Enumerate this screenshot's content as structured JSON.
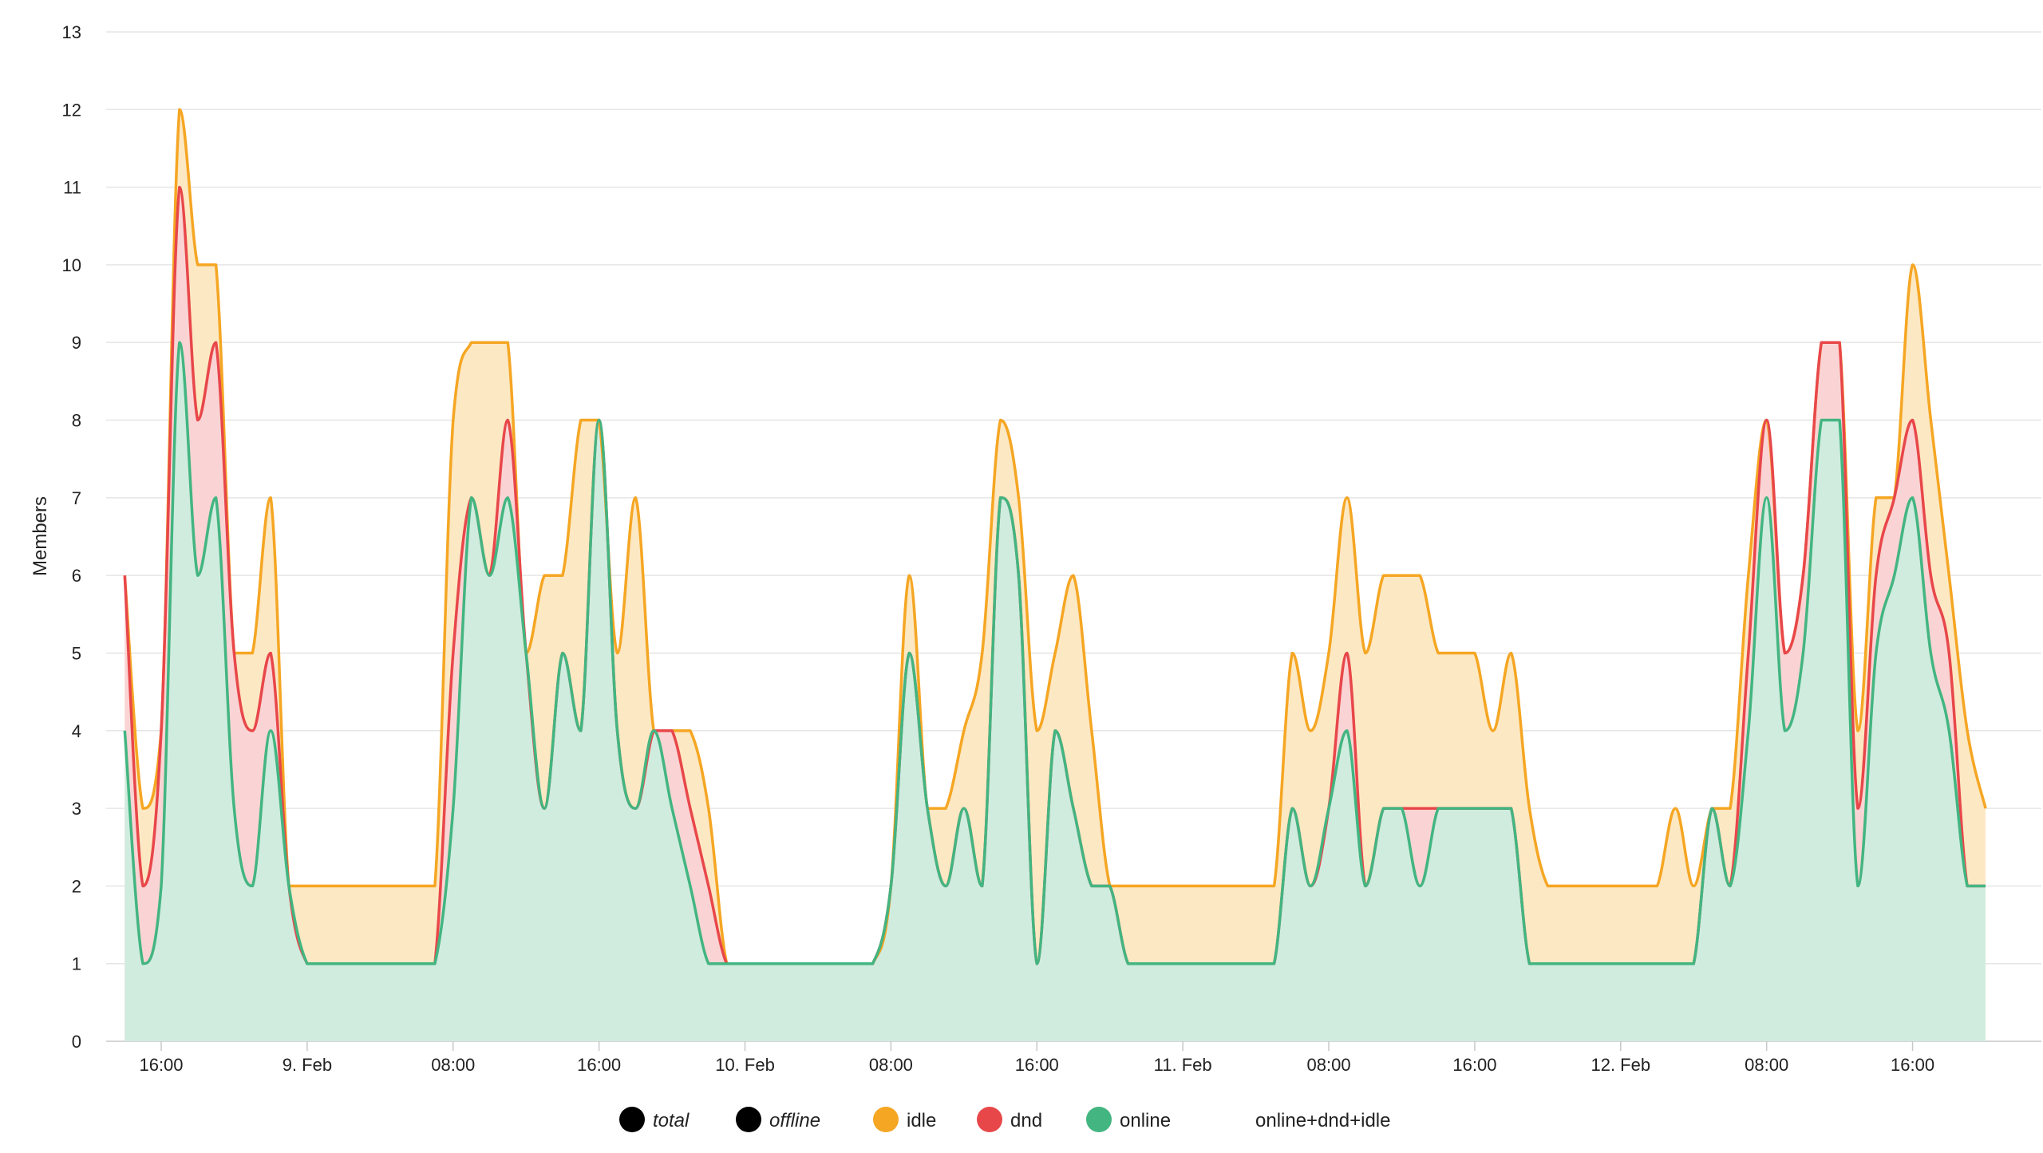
{
  "chart_data": {
    "type": "area",
    "title": "",
    "ylabel": "Members",
    "xlabel": "",
    "ylim": [
      0,
      13
    ],
    "y_ticks": [
      0,
      1,
      2,
      3,
      4,
      5,
      6,
      7,
      8,
      9,
      10,
      11,
      12,
      13
    ],
    "x_range_hours": [
      -4,
      128
    ],
    "x_ticks": [
      {
        "label": "16:00",
        "hour": 0
      },
      {
        "label": "9. Feb",
        "hour": 8
      },
      {
        "label": "08:00",
        "hour": 16
      },
      {
        "label": "16:00",
        "hour": 24
      },
      {
        "label": "10. Feb",
        "hour": 32
      },
      {
        "label": "08:00",
        "hour": 40
      },
      {
        "label": "16:00",
        "hour": 48
      },
      {
        "label": "11. Feb",
        "hour": 56
      },
      {
        "label": "08:00",
        "hour": 64
      },
      {
        "label": "16:00",
        "hour": 72
      },
      {
        "label": "12. Feb",
        "hour": 80
      },
      {
        "label": "08:00",
        "hour": 88
      },
      {
        "label": "16:00",
        "hour": 96
      }
    ],
    "grid": true,
    "legend_position": "bottom",
    "legend": [
      {
        "label": "total",
        "color": "#000000",
        "italic": true,
        "marker": true
      },
      {
        "label": "offline",
        "color": "#000000",
        "italic": true,
        "marker": true
      },
      {
        "label": "idle",
        "color": "#f5a623",
        "italic": false,
        "marker": true
      },
      {
        "label": "dnd",
        "color": "#e8474a",
        "italic": false,
        "marker": true
      },
      {
        "label": "online",
        "color": "#43b581",
        "italic": false,
        "marker": true
      },
      {
        "label": "online+dnd+idle",
        "color": "#000000",
        "italic": false,
        "marker": false
      }
    ],
    "series": [
      {
        "name": "online+dnd+idle",
        "color": "#f5a623",
        "fill": "#fde8c4",
        "points": [
          [
            -2,
            6
          ],
          [
            -1,
            3
          ],
          [
            0,
            4
          ],
          [
            1,
            12
          ],
          [
            2,
            10
          ],
          [
            3,
            10
          ],
          [
            4,
            5
          ],
          [
            5,
            5
          ],
          [
            6,
            7
          ],
          [
            7,
            2
          ],
          [
            8,
            2
          ],
          [
            9,
            2
          ],
          [
            10,
            2
          ],
          [
            11,
            2
          ],
          [
            12,
            2
          ],
          [
            13,
            2
          ],
          [
            14,
            2
          ],
          [
            15,
            2
          ],
          [
            16,
            8
          ],
          [
            17,
            9
          ],
          [
            18,
            9
          ],
          [
            19,
            9
          ],
          [
            20,
            5
          ],
          [
            21,
            6
          ],
          [
            22,
            6
          ],
          [
            23,
            8
          ],
          [
            24,
            8
          ],
          [
            25,
            5
          ],
          [
            26,
            7
          ],
          [
            27,
            4
          ],
          [
            28,
            4
          ],
          [
            29,
            4
          ],
          [
            30,
            3
          ],
          [
            31,
            1
          ],
          [
            32,
            1
          ],
          [
            33,
            1
          ],
          [
            34,
            1
          ],
          [
            35,
            1
          ],
          [
            36,
            1
          ],
          [
            37,
            1
          ],
          [
            38,
            1
          ],
          [
            39,
            1
          ],
          [
            40,
            2
          ],
          [
            41,
            6
          ],
          [
            42,
            3
          ],
          [
            43,
            3
          ],
          [
            44,
            4
          ],
          [
            45,
            5
          ],
          [
            46,
            8
          ],
          [
            47,
            7
          ],
          [
            48,
            4
          ],
          [
            49,
            5
          ],
          [
            50,
            6
          ],
          [
            51,
            4
          ],
          [
            52,
            2
          ],
          [
            53,
            2
          ],
          [
            54,
            2
          ],
          [
            55,
            2
          ],
          [
            56,
            2
          ],
          [
            57,
            2
          ],
          [
            58,
            2
          ],
          [
            59,
            2
          ],
          [
            60,
            2
          ],
          [
            61,
            2
          ],
          [
            62,
            5
          ],
          [
            63,
            4
          ],
          [
            64,
            5
          ],
          [
            65,
            7
          ],
          [
            66,
            5
          ],
          [
            67,
            6
          ],
          [
            68,
            6
          ],
          [
            69,
            6
          ],
          [
            70,
            5
          ],
          [
            71,
            5
          ],
          [
            72,
            5
          ],
          [
            73,
            4
          ],
          [
            74,
            5
          ],
          [
            75,
            3
          ],
          [
            76,
            2
          ],
          [
            77,
            2
          ],
          [
            78,
            2
          ],
          [
            79,
            2
          ],
          [
            80,
            2
          ],
          [
            81,
            2
          ],
          [
            82,
            2
          ],
          [
            83,
            3
          ],
          [
            84,
            2
          ],
          [
            85,
            3
          ],
          [
            86,
            3
          ],
          [
            87,
            6
          ],
          [
            88,
            8
          ],
          [
            89,
            5
          ],
          [
            90,
            6
          ],
          [
            91,
            9
          ],
          [
            92,
            9
          ],
          [
            93,
            4
          ],
          [
            94,
            7
          ],
          [
            95,
            7
          ],
          [
            96,
            10
          ],
          [
            97,
            8
          ],
          [
            98,
            6
          ],
          [
            99,
            4
          ],
          [
            100,
            3
          ]
        ]
      },
      {
        "name": "online+dnd",
        "color": "#e8474a",
        "fill": "#fad4d4",
        "points": [
          [
            -2,
            6
          ],
          [
            -1,
            2
          ],
          [
            0,
            4
          ],
          [
            1,
            11
          ],
          [
            2,
            8
          ],
          [
            3,
            9
          ],
          [
            4,
            5
          ],
          [
            5,
            4
          ],
          [
            6,
            5
          ],
          [
            7,
            2
          ],
          [
            8,
            1
          ],
          [
            9,
            1
          ],
          [
            10,
            1
          ],
          [
            11,
            1
          ],
          [
            12,
            1
          ],
          [
            13,
            1
          ],
          [
            14,
            1
          ],
          [
            15,
            1
          ],
          [
            16,
            5
          ],
          [
            17,
            7
          ],
          [
            18,
            6
          ],
          [
            19,
            8
          ],
          [
            20,
            5
          ],
          [
            21,
            3
          ],
          [
            22,
            5
          ],
          [
            23,
            4
          ],
          [
            24,
            8
          ],
          [
            25,
            4
          ],
          [
            26,
            3
          ],
          [
            27,
            4
          ],
          [
            28,
            4
          ],
          [
            29,
            3
          ],
          [
            30,
            2
          ],
          [
            31,
            1
          ],
          [
            32,
            1
          ],
          [
            33,
            1
          ],
          [
            34,
            1
          ],
          [
            35,
            1
          ],
          [
            36,
            1
          ],
          [
            37,
            1
          ],
          [
            38,
            1
          ],
          [
            39,
            1
          ],
          [
            40,
            2
          ],
          [
            41,
            5
          ],
          [
            42,
            3
          ],
          [
            43,
            2
          ],
          [
            44,
            3
          ],
          [
            45,
            2
          ],
          [
            46,
            7
          ],
          [
            47,
            6
          ],
          [
            48,
            1
          ],
          [
            49,
            4
          ],
          [
            50,
            3
          ],
          [
            51,
            2
          ],
          [
            52,
            2
          ],
          [
            53,
            1
          ],
          [
            54,
            1
          ],
          [
            55,
            1
          ],
          [
            56,
            1
          ],
          [
            57,
            1
          ],
          [
            58,
            1
          ],
          [
            59,
            1
          ],
          [
            60,
            1
          ],
          [
            61,
            1
          ],
          [
            62,
            3
          ],
          [
            63,
            2
          ],
          [
            64,
            3
          ],
          [
            65,
            5
          ],
          [
            66,
            2
          ],
          [
            67,
            3
          ],
          [
            68,
            3
          ],
          [
            69,
            3
          ],
          [
            70,
            3
          ],
          [
            71,
            3
          ],
          [
            72,
            3
          ],
          [
            73,
            3
          ],
          [
            74,
            3
          ],
          [
            75,
            1
          ],
          [
            76,
            1
          ],
          [
            77,
            1
          ],
          [
            78,
            1
          ],
          [
            79,
            1
          ],
          [
            80,
            1
          ],
          [
            81,
            1
          ],
          [
            82,
            1
          ],
          [
            83,
            1
          ],
          [
            84,
            1
          ],
          [
            85,
            3
          ],
          [
            86,
            2
          ],
          [
            87,
            5
          ],
          [
            88,
            8
          ],
          [
            89,
            5
          ],
          [
            90,
            6
          ],
          [
            91,
            9
          ],
          [
            92,
            9
          ],
          [
            93,
            3
          ],
          [
            94,
            6
          ],
          [
            95,
            7
          ],
          [
            96,
            8
          ],
          [
            97,
            6
          ],
          [
            98,
            5
          ],
          [
            99,
            2
          ],
          [
            100,
            2
          ]
        ]
      },
      {
        "name": "online",
        "color": "#43b581",
        "fill": "#d0ecdf",
        "points": [
          [
            -2,
            4
          ],
          [
            -1,
            1
          ],
          [
            0,
            2
          ],
          [
            1,
            9
          ],
          [
            2,
            6
          ],
          [
            3,
            7
          ],
          [
            4,
            3
          ],
          [
            5,
            2
          ],
          [
            6,
            4
          ],
          [
            7,
            2
          ],
          [
            8,
            1
          ],
          [
            9,
            1
          ],
          [
            10,
            1
          ],
          [
            11,
            1
          ],
          [
            12,
            1
          ],
          [
            13,
            1
          ],
          [
            14,
            1
          ],
          [
            15,
            1
          ],
          [
            16,
            3
          ],
          [
            17,
            7
          ],
          [
            18,
            6
          ],
          [
            19,
            7
          ],
          [
            20,
            5
          ],
          [
            21,
            3
          ],
          [
            22,
            5
          ],
          [
            23,
            4
          ],
          [
            24,
            8
          ],
          [
            25,
            4
          ],
          [
            26,
            3
          ],
          [
            27,
            4
          ],
          [
            28,
            3
          ],
          [
            29,
            2
          ],
          [
            30,
            1
          ],
          [
            31,
            1
          ],
          [
            32,
            1
          ],
          [
            33,
            1
          ],
          [
            34,
            1
          ],
          [
            35,
            1
          ],
          [
            36,
            1
          ],
          [
            37,
            1
          ],
          [
            38,
            1
          ],
          [
            39,
            1
          ],
          [
            40,
            2
          ],
          [
            41,
            5
          ],
          [
            42,
            3
          ],
          [
            43,
            2
          ],
          [
            44,
            3
          ],
          [
            45,
            2
          ],
          [
            46,
            7
          ],
          [
            47,
            6
          ],
          [
            48,
            1
          ],
          [
            49,
            4
          ],
          [
            50,
            3
          ],
          [
            51,
            2
          ],
          [
            52,
            2
          ],
          [
            53,
            1
          ],
          [
            54,
            1
          ],
          [
            55,
            1
          ],
          [
            56,
            1
          ],
          [
            57,
            1
          ],
          [
            58,
            1
          ],
          [
            59,
            1
          ],
          [
            60,
            1
          ],
          [
            61,
            1
          ],
          [
            62,
            3
          ],
          [
            63,
            2
          ],
          [
            64,
            3
          ],
          [
            65,
            4
          ],
          [
            66,
            2
          ],
          [
            67,
            3
          ],
          [
            68,
            3
          ],
          [
            69,
            2
          ],
          [
            70,
            3
          ],
          [
            71,
            3
          ],
          [
            72,
            3
          ],
          [
            73,
            3
          ],
          [
            74,
            3
          ],
          [
            75,
            1
          ],
          [
            76,
            1
          ],
          [
            77,
            1
          ],
          [
            78,
            1
          ],
          [
            79,
            1
          ],
          [
            80,
            1
          ],
          [
            81,
            1
          ],
          [
            82,
            1
          ],
          [
            83,
            1
          ],
          [
            84,
            1
          ],
          [
            85,
            3
          ],
          [
            86,
            2
          ],
          [
            87,
            4
          ],
          [
            88,
            7
          ],
          [
            89,
            4
          ],
          [
            90,
            5
          ],
          [
            91,
            8
          ],
          [
            92,
            8
          ],
          [
            93,
            2
          ],
          [
            94,
            5
          ],
          [
            95,
            6
          ],
          [
            96,
            7
          ],
          [
            97,
            5
          ],
          [
            98,
            4
          ],
          [
            99,
            2
          ],
          [
            100,
            2
          ]
        ]
      }
    ]
  }
}
